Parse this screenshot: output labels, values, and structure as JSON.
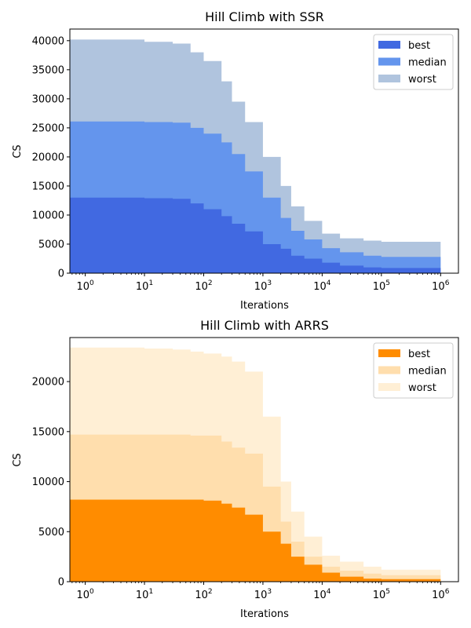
{
  "chart_data": [
    {
      "type": "area",
      "title": "Hill Climb with SSR",
      "xlabel": "Iterations",
      "ylabel": "CS",
      "xscale": "log",
      "xlim": [
        0.55,
        2000000
      ],
      "ylim": [
        0,
        42000
      ],
      "yticks": [
        0,
        5000,
        10000,
        15000,
        20000,
        25000,
        30000,
        35000,
        40000
      ],
      "xticks": [
        1,
        10,
        100,
        1000,
        10000,
        100000,
        1000000
      ],
      "xtick_labels": [
        {
          "base": "10",
          "exp": "0"
        },
        {
          "base": "10",
          "exp": "1"
        },
        {
          "base": "10",
          "exp": "2"
        },
        {
          "base": "10",
          "exp": "3"
        },
        {
          "base": "10",
          "exp": "4"
        },
        {
          "base": "10",
          "exp": "5"
        },
        {
          "base": "10",
          "exp": "6"
        }
      ],
      "grid": false,
      "legend_position": "top-right",
      "x": [
        0.55,
        3,
        10,
        30,
        60,
        100,
        200,
        300,
        500,
        1000,
        2000,
        3000,
        5000,
        10000,
        20000,
        50000,
        100000,
        1000000
      ],
      "series": [
        {
          "name": "worst",
          "color": "#b0c4de",
          "values": [
            40200,
            40200,
            39800,
            39500,
            38000,
            36500,
            33000,
            29500,
            26000,
            20000,
            15000,
            11500,
            9000,
            6800,
            6000,
            5600,
            5400,
            5400
          ]
        },
        {
          "name": "median",
          "color": "#6495ed",
          "values": [
            26100,
            26100,
            26000,
            25900,
            25000,
            24000,
            22500,
            20500,
            17500,
            13000,
            9500,
            7300,
            5800,
            4300,
            3600,
            3000,
            2800,
            2700
          ]
        },
        {
          "name": "best",
          "color": "#4169e1",
          "values": [
            13000,
            13000,
            12900,
            12800,
            12000,
            11000,
            9800,
            8500,
            7200,
            5000,
            4200,
            3000,
            2500,
            1800,
            1300,
            1000,
            900,
            800
          ]
        }
      ],
      "legend": [
        "best",
        "median",
        "worst"
      ]
    },
    {
      "type": "area",
      "title": "Hill Climb with ARRS",
      "xlabel": "Iterations",
      "ylabel": "CS",
      "xscale": "log",
      "xlim": [
        0.55,
        2000000
      ],
      "ylim": [
        0,
        24400
      ],
      "yticks": [
        0,
        5000,
        10000,
        15000,
        20000
      ],
      "xticks": [
        1,
        10,
        100,
        1000,
        10000,
        100000,
        1000000
      ],
      "xtick_labels": [
        {
          "base": "10",
          "exp": "0"
        },
        {
          "base": "10",
          "exp": "1"
        },
        {
          "base": "10",
          "exp": "2"
        },
        {
          "base": "10",
          "exp": "3"
        },
        {
          "base": "10",
          "exp": "4"
        },
        {
          "base": "10",
          "exp": "5"
        },
        {
          "base": "10",
          "exp": "6"
        }
      ],
      "grid": false,
      "legend_position": "top-right",
      "x": [
        0.55,
        3,
        10,
        30,
        60,
        100,
        200,
        300,
        500,
        1000,
        2000,
        3000,
        5000,
        10000,
        20000,
        50000,
        100000,
        1000000
      ],
      "series": [
        {
          "name": "worst",
          "color": "#ffefd5",
          "values": [
            23400,
            23400,
            23300,
            23200,
            23000,
            22800,
            22500,
            22000,
            21000,
            16500,
            10000,
            7000,
            4500,
            2600,
            2000,
            1500,
            1200,
            900
          ]
        },
        {
          "name": "median",
          "color": "#ffdead",
          "values": [
            14700,
            14700,
            14700,
            14700,
            14600,
            14600,
            14000,
            13400,
            12800,
            9500,
            6000,
            4000,
            2500,
            1500,
            1100,
            800,
            650,
            500
          ]
        },
        {
          "name": "best",
          "color": "#ff8c00",
          "values": [
            8200,
            8200,
            8200,
            8200,
            8200,
            8100,
            7800,
            7400,
            6700,
            5000,
            3800,
            2500,
            1700,
            900,
            500,
            300,
            250,
            200
          ]
        }
      ],
      "legend": [
        "best",
        "median",
        "worst"
      ]
    }
  ]
}
